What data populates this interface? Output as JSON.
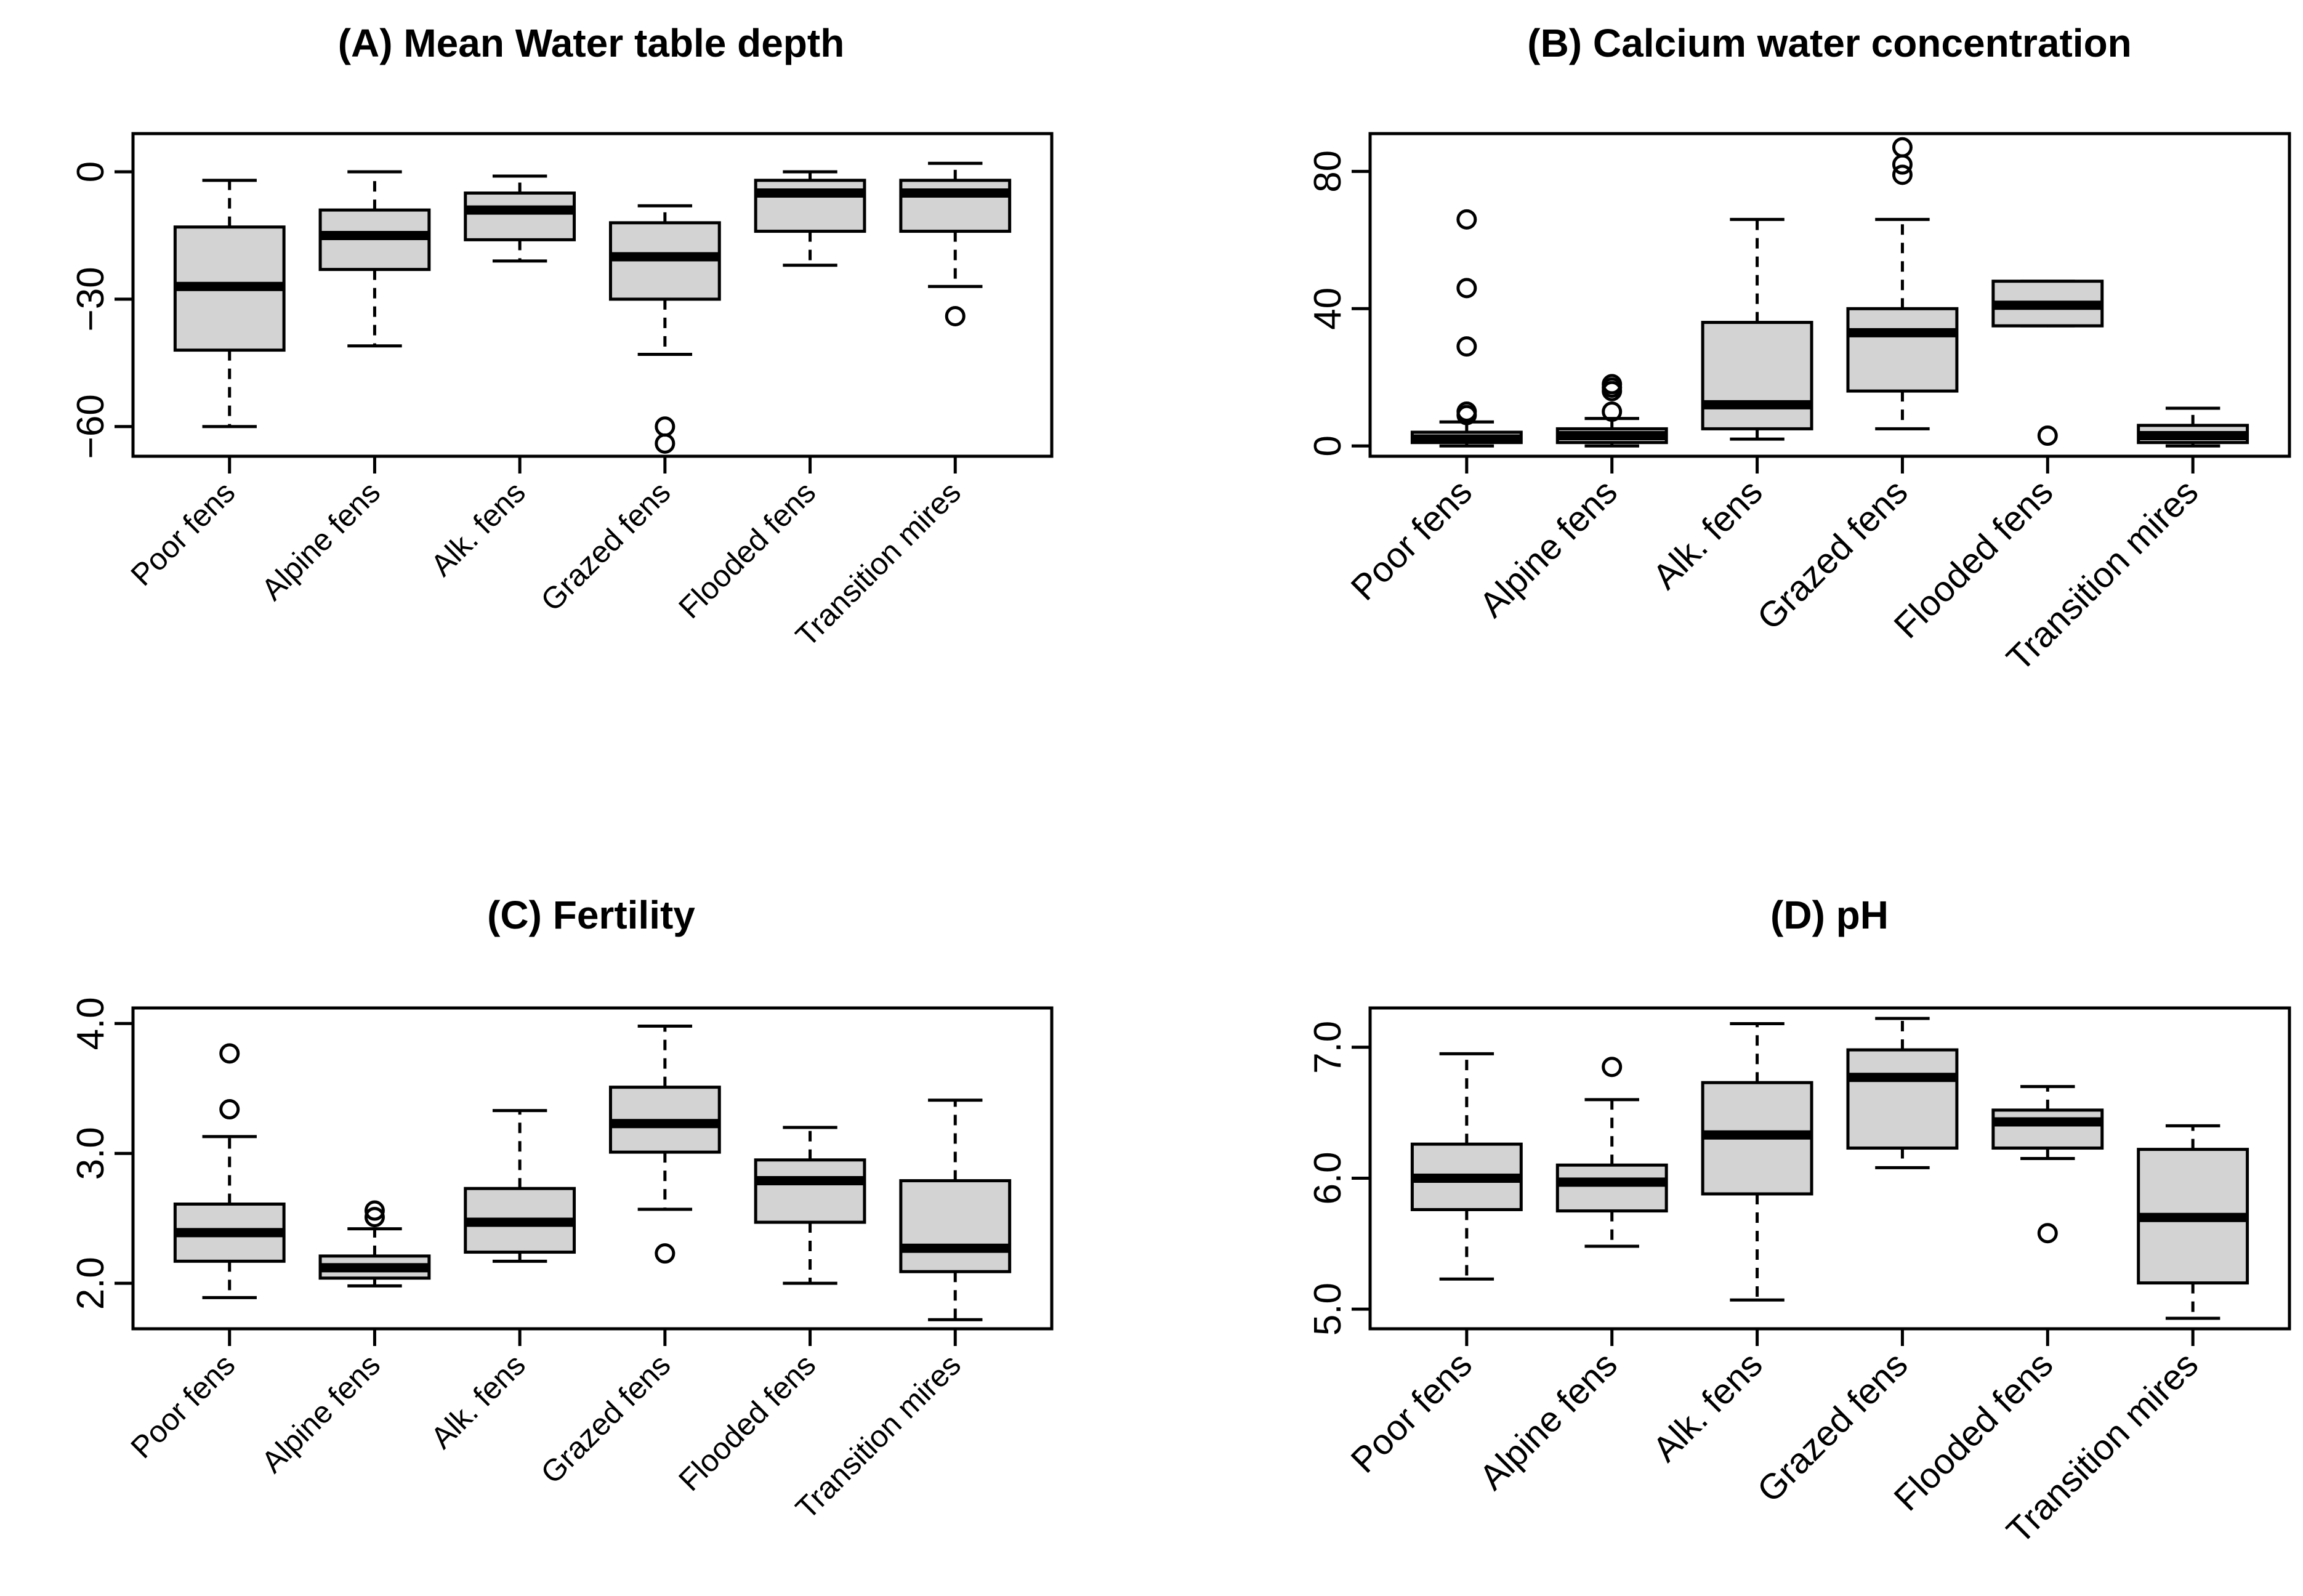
{
  "figure": {
    "background": "#ffffff",
    "box_fill": "#d3d3d3",
    "stroke": "#000000"
  },
  "chart_data": [
    {
      "type": "boxplot",
      "title": "(A) Mean Water table depth",
      "xlabel": "",
      "ylabel": "",
      "categories": [
        "Poor fens",
        "Alpine fens",
        "Alk. fens",
        "Grazed fens",
        "Flooded fens",
        "Transition mires"
      ],
      "yticks": [
        0,
        -30,
        -60
      ],
      "ytick_labels": [
        "0",
        "−30",
        "−60"
      ],
      "ylim": [
        -67,
        9
      ],
      "boxes": [
        {
          "whisker_low": -60,
          "q1": -42,
          "median": -27,
          "q3": -13,
          "whisker_high": -2,
          "outliers": []
        },
        {
          "whisker_low": -41,
          "q1": -23,
          "median": -15,
          "q3": -9,
          "whisker_high": 0,
          "outliers": []
        },
        {
          "whisker_low": -21,
          "q1": -16,
          "median": -9,
          "q3": -5,
          "whisker_high": -1,
          "outliers": []
        },
        {
          "whisker_low": -43,
          "q1": -30,
          "median": -20,
          "q3": -12,
          "whisker_high": -8,
          "outliers": [
            -60,
            -64
          ]
        },
        {
          "whisker_low": -22,
          "q1": -14,
          "median": -5,
          "q3": -2,
          "whisker_high": 0,
          "outliers": []
        },
        {
          "whisker_low": -27,
          "q1": -14,
          "median": -5,
          "q3": -2,
          "whisker_high": 2,
          "outliers": [
            -34
          ]
        }
      ]
    },
    {
      "type": "boxplot",
      "title": "(B) Calcium water concentration",
      "xlabel": "",
      "ylabel": "",
      "categories": [
        "Poor fens",
        "Alpine fens",
        "Alk. fens",
        "Grazed fens",
        "Flooded fens",
        "Transition mires"
      ],
      "yticks": [
        0,
        40,
        80
      ],
      "ytick_labels": [
        "0",
        "40",
        "80"
      ],
      "ylim": [
        -3,
        91
      ],
      "boxes": [
        {
          "whisker_low": 0,
          "q1": 1,
          "median": 2,
          "q3": 4,
          "whisker_high": 7,
          "outliers": [
            9,
            10,
            29,
            46,
            66
          ]
        },
        {
          "whisker_low": 0,
          "q1": 1,
          "median": 3,
          "q3": 5,
          "whisker_high": 8,
          "outliers": [
            10,
            16,
            17,
            18
          ]
        },
        {
          "whisker_low": 2,
          "q1": 5,
          "median": 12,
          "q3": 36,
          "whisker_high": 66,
          "outliers": []
        },
        {
          "whisker_low": 5,
          "q1": 16,
          "median": 33,
          "q3": 40,
          "whisker_high": 66,
          "outliers": [
            79,
            82,
            87
          ]
        },
        {
          "whisker_low": 35,
          "q1": 35,
          "median": 41,
          "q3": 48,
          "whisker_high": 48,
          "outliers": [
            3
          ]
        },
        {
          "whisker_low": 0,
          "q1": 1,
          "median": 3,
          "q3": 6,
          "whisker_high": 11,
          "outliers": []
        }
      ]
    },
    {
      "type": "boxplot",
      "title": "(C) Fertility",
      "xlabel": "",
      "ylabel": "",
      "categories": [
        "Poor fens",
        "Alpine fens",
        "Alk. fens",
        "Grazed fens",
        "Flooded fens",
        "Transition mires"
      ],
      "yticks": [
        2.0,
        3.0,
        4.0
      ],
      "ytick_labels": [
        "2.0",
        "3.0",
        "4.0"
      ],
      "ylim": [
        1.65,
        4.12
      ],
      "boxes": [
        {
          "whisker_low": 1.89,
          "q1": 2.17,
          "median": 2.39,
          "q3": 2.61,
          "whisker_high": 3.13,
          "outliers": [
            3.34,
            3.77
          ]
        },
        {
          "whisker_low": 1.98,
          "q1": 2.04,
          "median": 2.12,
          "q3": 2.21,
          "whisker_high": 2.42,
          "outliers": [
            2.51,
            2.56
          ]
        },
        {
          "whisker_low": 2.17,
          "q1": 2.24,
          "median": 2.47,
          "q3": 2.73,
          "whisker_high": 3.33,
          "outliers": []
        },
        {
          "whisker_low": 2.57,
          "q1": 3.01,
          "median": 3.23,
          "q3": 3.51,
          "whisker_high": 3.98,
          "outliers": [
            2.23
          ]
        },
        {
          "whisker_low": 2.0,
          "q1": 2.47,
          "median": 2.79,
          "q3": 2.95,
          "whisker_high": 3.2,
          "outliers": []
        },
        {
          "whisker_low": 1.72,
          "q1": 2.09,
          "median": 2.27,
          "q3": 2.79,
          "whisker_high": 3.41,
          "outliers": []
        }
      ]
    },
    {
      "type": "boxplot",
      "title": "(D) pH",
      "xlabel": "",
      "ylabel": "",
      "categories": [
        "Poor fens",
        "Alpine fens",
        "Alk. fens",
        "Grazed fens",
        "Flooded fens",
        "Transition mires"
      ],
      "yticks": [
        5.0,
        6.0,
        7.0
      ],
      "ytick_labels": [
        "5.0",
        "6.0",
        "7.0"
      ],
      "ylim": [
        4.85,
        7.3
      ],
      "boxes": [
        {
          "whisker_low": 5.23,
          "q1": 5.76,
          "median": 6.0,
          "q3": 6.26,
          "whisker_high": 6.95,
          "outliers": []
        },
        {
          "whisker_low": 5.48,
          "q1": 5.75,
          "median": 5.97,
          "q3": 6.1,
          "whisker_high": 6.6,
          "outliers": [
            6.85
          ]
        },
        {
          "whisker_low": 5.07,
          "q1": 5.88,
          "median": 6.33,
          "q3": 6.73,
          "whisker_high": 7.18,
          "outliers": []
        },
        {
          "whisker_low": 6.08,
          "q1": 6.23,
          "median": 6.77,
          "q3": 6.98,
          "whisker_high": 7.22,
          "outliers": []
        },
        {
          "whisker_low": 6.15,
          "q1": 6.23,
          "median": 6.43,
          "q3": 6.52,
          "whisker_high": 6.7,
          "outliers": [
            5.58
          ]
        },
        {
          "whisker_low": 4.93,
          "q1": 5.2,
          "median": 5.7,
          "q3": 6.22,
          "whisker_high": 6.4,
          "outliers": []
        }
      ]
    }
  ]
}
